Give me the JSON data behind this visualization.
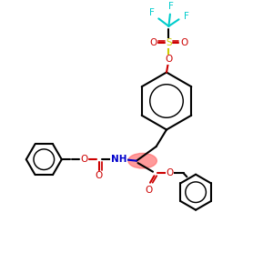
{
  "bg_color": "#ffffff",
  "bond_color": "#000000",
  "N_color": "#0000cc",
  "O_color": "#cc0000",
  "S_color": "#cccc00",
  "F_color": "#00cccc",
  "lw": 1.5,
  "figsize": [
    3.0,
    3.0
  ],
  "dpi": 100,
  "xlim": [
    0,
    10
  ],
  "ylim": [
    0,
    10
  ]
}
